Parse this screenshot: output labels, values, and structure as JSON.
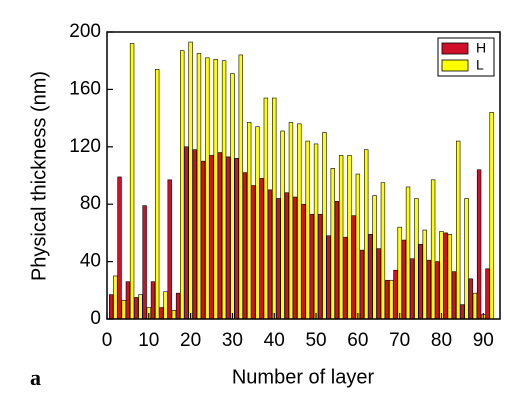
{
  "chart_data": {
    "type": "bar",
    "x_label": "Number of layer",
    "y_label": "Physical thickness (nm)",
    "panel_label": "a",
    "xlim": [
      0,
      94
    ],
    "xticks": [
      0,
      10,
      20,
      30,
      40,
      50,
      60,
      70,
      80,
      90
    ],
    "ylim": [
      0,
      200
    ],
    "yticks": [
      0,
      40,
      80,
      120,
      160,
      200
    ],
    "legend": "upper right",
    "series": [
      {
        "name": "H",
        "color": "#d0102a",
        "x": [
          1,
          3,
          5,
          7,
          9,
          11,
          13,
          15,
          17,
          19,
          21,
          23,
          25,
          27,
          29,
          31,
          33,
          35,
          37,
          39,
          41,
          43,
          45,
          47,
          49,
          51,
          53,
          55,
          57,
          59,
          61,
          63,
          65,
          67,
          69,
          71,
          73,
          75,
          77,
          79,
          81,
          83,
          85,
          87,
          89,
          91
        ],
        "values": [
          17,
          99,
          26,
          15,
          79,
          26,
          8,
          97,
          18,
          120,
          118,
          110,
          114,
          116,
          113,
          112,
          102,
          93,
          98,
          90,
          84,
          88,
          85,
          80,
          73,
          73,
          58,
          82,
          57,
          72,
          48,
          59,
          49,
          27,
          34,
          55,
          42,
          52,
          41,
          40,
          60,
          33,
          10,
          28,
          104,
          35
        ]
      },
      {
        "name": "L",
        "color": "#ffff00",
        "x": [
          2,
          4,
          6,
          8,
          10,
          12,
          14,
          16,
          18,
          20,
          22,
          24,
          26,
          28,
          30,
          32,
          34,
          36,
          38,
          40,
          42,
          44,
          46,
          48,
          50,
          52,
          54,
          56,
          58,
          60,
          62,
          64,
          66,
          68,
          70,
          72,
          74,
          76,
          78,
          80,
          82,
          84,
          86,
          88,
          90,
          92
        ],
        "values": [
          30,
          13,
          192,
          17,
          8,
          174,
          19,
          6,
          187,
          193,
          185,
          182,
          181,
          180,
          171,
          184,
          137,
          134,
          154,
          154,
          131,
          137,
          136,
          124,
          122,
          130,
          105,
          114,
          114,
          101,
          118,
          86,
          95,
          27,
          64,
          92,
          84,
          62,
          97,
          61,
          59,
          124,
          84,
          18,
          3,
          144
        ]
      }
    ]
  }
}
